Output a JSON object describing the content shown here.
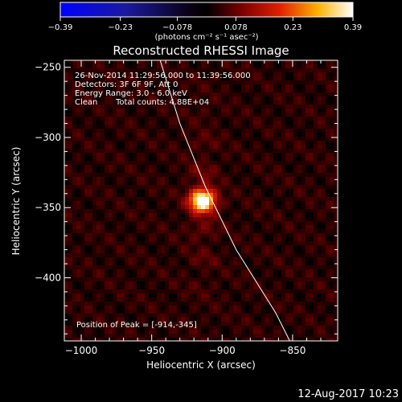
{
  "chart_data": {
    "type": "heatmap",
    "title": "Reconstructed RHESSI Image",
    "xlabel": "Heliocentric X (arcsec)",
    "ylabel": "Heliocentric Y (arcsec)",
    "xlim": [
      -1012,
      -818
    ],
    "ylim": [
      -445,
      -245
    ],
    "x_ticks": [
      -1000,
      -950,
      -900,
      -850
    ],
    "y_ticks": [
      -250,
      -300,
      -350,
      -400
    ],
    "x_tick_labels": [
      "−1000",
      "−950",
      "−900",
      "−850"
    ],
    "y_tick_labels": [
      "−250",
      "−300",
      "−350",
      "−400"
    ],
    "colorbar": {
      "ticks": [
        -0.39,
        -0.23,
        -0.078,
        0.078,
        0.23,
        0.39
      ],
      "tick_labels": [
        "−0.39",
        "−0.23",
        "−0.078",
        "0.078",
        "0.23",
        "0.39"
      ],
      "range": [
        -0.39,
        0.39
      ],
      "label": "(photons cm⁻² s⁻¹ asec⁻²)",
      "colormap": "blue-black-red-yellow-white"
    },
    "source": {
      "peak": [
        -914,
        -345
      ],
      "peak_value": 0.39,
      "sigma_arcsec": 6
    },
    "limb_points": [
      [
        -944,
        -245
      ],
      [
        -930,
        -290
      ],
      [
        -912,
        -335
      ],
      [
        -890,
        -380
      ],
      [
        -862,
        -425
      ],
      [
        -852,
        -445
      ]
    ],
    "annotations": {
      "time": "26-Nov-2014 11:29:56.000 to 11:39:56.000",
      "detectors": "Detectors: 3F 6F 9F, Att 0",
      "energy": "Energy Range: 3.0 - 6.0 keV",
      "method": "Clean",
      "counts": "Total counts: 4.88E+04",
      "peak_position": "Position of Peak = [-914,-345]"
    },
    "footer_date": "12-Aug-2017 10:23"
  }
}
